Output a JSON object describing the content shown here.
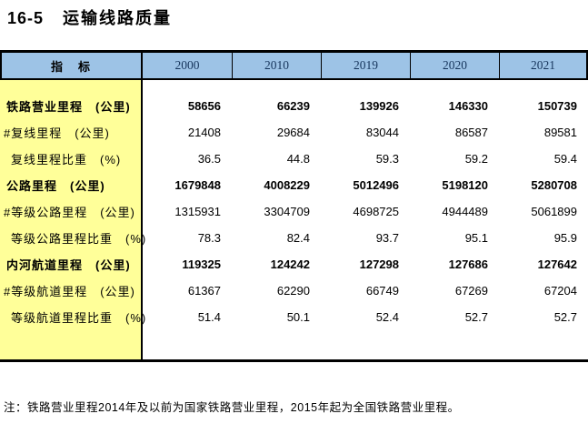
{
  "title": {
    "code": "16-5",
    "text": "运输线路质量"
  },
  "header": {
    "indicator_label": "指　标",
    "years": [
      "2000",
      "2010",
      "2019",
      "2020",
      "2021"
    ]
  },
  "chart_data": {
    "type": "table",
    "title": "16-5 运输线路质量",
    "columns": [
      "指标",
      "2000",
      "2010",
      "2019",
      "2020",
      "2021"
    ],
    "rows": [
      [
        "铁路营业里程 (公里)",
        58656,
        66239,
        139926,
        146330,
        150739
      ],
      [
        "#复线里程 (公里)",
        21408,
        29684,
        83044,
        86587,
        89581
      ],
      [
        "复线里程比重 (%)",
        36.5,
        44.8,
        59.3,
        59.2,
        59.4
      ],
      [
        "公路里程 (公里)",
        1679848,
        4008229,
        5012496,
        5198120,
        5280708
      ],
      [
        "#等级公路里程 (公里)",
        1315931,
        3304709,
        4698725,
        4944489,
        5061899
      ],
      [
        "等级公路里程比重 (%)",
        78.3,
        82.4,
        93.7,
        95.1,
        95.9
      ],
      [
        "内河航道里程 (公里)",
        119325,
        124242,
        127298,
        127686,
        127642
      ],
      [
        "#等级航道里程 (公里)",
        61367,
        62290,
        66749,
        67269,
        67204
      ],
      [
        "等级航道里程比重 (%)",
        51.4,
        50.1,
        52.4,
        52.7,
        52.7
      ]
    ]
  },
  "table": {
    "rows": [
      {
        "label": "铁路营业里程　(公里)",
        "style": "primary",
        "values": [
          "58656",
          "66239",
          "139926",
          "146330",
          "150739"
        ]
      },
      {
        "label": "#复线里程　(公里)",
        "style": "sub",
        "values": [
          "21408",
          "29684",
          "83044",
          "86587",
          "89581"
        ]
      },
      {
        "label": "复线里程比重　(%)",
        "style": "ratio",
        "values": [
          "36.5",
          "44.8",
          "59.3",
          "59.2",
          "59.4"
        ]
      },
      {
        "label": "公路里程　(公里)",
        "style": "primary",
        "values": [
          "1679848",
          "4008229",
          "5012496",
          "5198120",
          "5280708"
        ]
      },
      {
        "label": "#等级公路里程　(公里)",
        "style": "sub",
        "values": [
          "1315931",
          "3304709",
          "4698725",
          "4944489",
          "5061899"
        ]
      },
      {
        "label": "等级公路里程比重　(%)",
        "style": "ratio",
        "values": [
          "78.3",
          "82.4",
          "93.7",
          "95.1",
          "95.9"
        ]
      },
      {
        "label": "内河航道里程　(公里)",
        "style": "primary",
        "values": [
          "119325",
          "124242",
          "127298",
          "127686",
          "127642"
        ]
      },
      {
        "label": "#等级航道里程　(公里)",
        "style": "sub",
        "values": [
          "61367",
          "62290",
          "66749",
          "67269",
          "67204"
        ]
      },
      {
        "label": "等级航道里程比重　(%)",
        "style": "ratio",
        "values": [
          "51.4",
          "50.1",
          "52.4",
          "52.7",
          "52.7"
        ]
      }
    ]
  },
  "footnote": "注：铁路营业里程2014年及以前为国家铁路营业里程，2015年起为全国铁路营业里程。",
  "colors": {
    "header_bg": "#9DC3E6",
    "label_bg": "#FFFF99",
    "year_text": "#17365D",
    "border": "#000000"
  }
}
